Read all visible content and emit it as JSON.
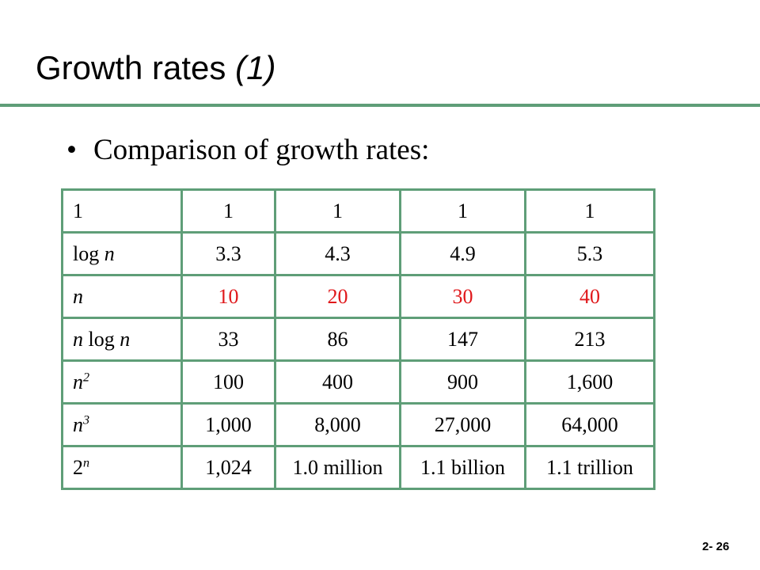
{
  "title": {
    "text": "Growth rates",
    "paren": "(1)"
  },
  "bullet": {
    "symbol": "•",
    "text": "Comparison of growth rates:"
  },
  "table": {
    "header": [
      "1",
      "1",
      "1",
      "1",
      "1"
    ],
    "row_logn": {
      "label_prefix": "log",
      "var": "n",
      "values": [
        "3.3",
        "4.3",
        "4.9",
        "5.3"
      ]
    },
    "row_n": {
      "var": "n",
      "values": [
        "10",
        "20",
        "30",
        "40"
      ]
    },
    "row_nlogn": {
      "var": "n",
      "mid": "log",
      "values": [
        "33",
        "86",
        "147",
        "213"
      ]
    },
    "row_n2": {
      "var": "n",
      "exp": "2",
      "values": [
        "100",
        "400",
        "900",
        "1,600"
      ]
    },
    "row_n3": {
      "var": "n",
      "exp": "3",
      "values": [
        "1,000",
        "8,000",
        "27,000",
        "64,000"
      ]
    },
    "row_2n": {
      "base": "2",
      "exp": "n",
      "values": [
        "1,024",
        "1.0 million",
        "1.1 billion",
        "1.1 trillion"
      ]
    }
  },
  "colors": {
    "accent": "#5f9e78",
    "highlight": "#e0181b"
  },
  "page_number": "2- 26"
}
